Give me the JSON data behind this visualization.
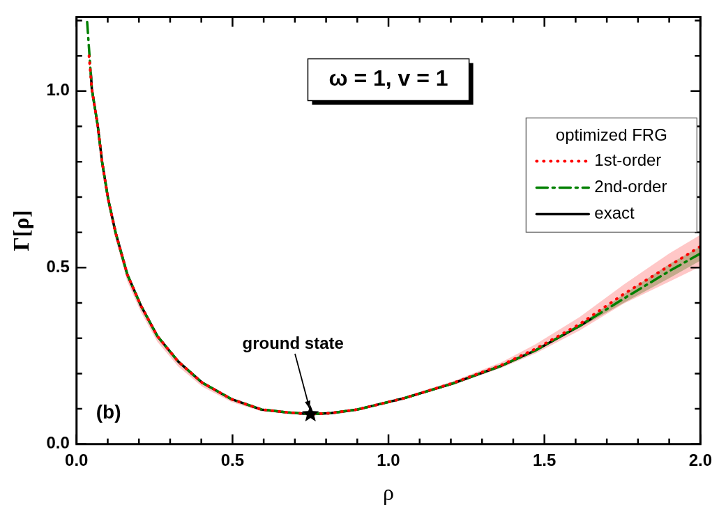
{
  "chart_data": {
    "type": "line",
    "xlabel": "ρ",
    "ylabel": "Γ[ρ]",
    "legend_title": "optimized FRG",
    "legend": "top right",
    "grid": false,
    "xlim": [
      0,
      2.0
    ],
    "ylim": [
      0,
      1.21
    ],
    "xticks": [
      {
        "value": 0,
        "label": "0.0"
      },
      {
        "value": 0.1,
        "label": null
      },
      {
        "value": 0.2,
        "label": null
      },
      {
        "value": 0.3,
        "label": null
      },
      {
        "value": 0.4,
        "label": null
      },
      {
        "value": 0.5,
        "label": "0.5"
      },
      {
        "value": 0.6,
        "label": null
      },
      {
        "value": 0.7,
        "label": null
      },
      {
        "value": 0.8,
        "label": null
      },
      {
        "value": 0.9,
        "label": null
      },
      {
        "value": 1.0,
        "label": "1.0"
      },
      {
        "value": 1.1,
        "label": null
      },
      {
        "value": 1.2,
        "label": null
      },
      {
        "value": 1.3,
        "label": null
      },
      {
        "value": 1.4,
        "label": null
      },
      {
        "value": 1.5,
        "label": "1.5"
      },
      {
        "value": 1.6,
        "label": null
      },
      {
        "value": 1.7,
        "label": null
      },
      {
        "value": 1.8,
        "label": null
      },
      {
        "value": 1.9,
        "label": null
      },
      {
        "value": 2.0,
        "label": "2.0"
      }
    ],
    "yticks": [
      {
        "value": 0,
        "label": "0.0"
      },
      {
        "value": 0.1,
        "label": null
      },
      {
        "value": 0.2,
        "label": null
      },
      {
        "value": 0.3,
        "label": null
      },
      {
        "value": 0.4,
        "label": null
      },
      {
        "value": 0.5,
        "label": "0.5"
      },
      {
        "value": 0.6,
        "label": null
      },
      {
        "value": 0.7,
        "label": null
      },
      {
        "value": 0.8,
        "label": null
      },
      {
        "value": 0.9,
        "label": null
      },
      {
        "value": 1.0,
        "label": "1.0"
      },
      {
        "value": 1.1,
        "label": null
      },
      {
        "value": 1.2,
        "label": null
      }
    ],
    "annotations": [
      "ω = 1, v = 1",
      "(b)",
      {
        "text": "ground state",
        "x": 0.75,
        "y": 0.085
      }
    ],
    "series": [
      {
        "name": "1st-order",
        "color": "#ff0000",
        "line_style": "dotted",
        "marker": "none",
        "x": [
          0.04,
          0.049,
          0.068,
          0.082,
          0.101,
          0.125,
          0.163,
          0.206,
          0.259,
          0.326,
          0.403,
          0.498,
          0.593,
          0.675,
          0.75,
          0.816,
          0.9,
          1.05,
          1.207,
          1.362,
          1.472,
          1.613,
          1.754,
          1.9,
          2.0
        ],
        "values": [
          1.1,
          1.006,
          0.902,
          0.799,
          0.696,
          0.6,
          0.48,
          0.393,
          0.306,
          0.234,
          0.174,
          0.127,
          0.098,
          0.09,
          0.085,
          0.088,
          0.098,
          0.13,
          0.173,
          0.224,
          0.27,
          0.34,
          0.425,
          0.505,
          0.56
        ],
        "lower": [
          1.08,
          0.99,
          0.885,
          0.78,
          0.675,
          0.58,
          0.46,
          0.375,
          0.29,
          0.22,
          0.163,
          0.119,
          0.093,
          0.087,
          0.083,
          0.086,
          0.096,
          0.127,
          0.168,
          0.216,
          0.257,
          0.322,
          0.398,
          0.46,
          0.503
        ],
        "upper": [
          1.12,
          1.012,
          0.908,
          0.805,
          0.702,
          0.606,
          0.486,
          0.399,
          0.311,
          0.238,
          0.178,
          0.13,
          0.1,
          0.092,
          0.087,
          0.09,
          0.1,
          0.134,
          0.178,
          0.232,
          0.283,
          0.36,
          0.452,
          0.54,
          0.593
        ]
      },
      {
        "name": "2nd-order",
        "color": "#008000",
        "line_style": "dashed",
        "marker": "none",
        "x": [
          0.034,
          0.049,
          0.068,
          0.082,
          0.101,
          0.125,
          0.163,
          0.206,
          0.259,
          0.326,
          0.403,
          0.498,
          0.593,
          0.675,
          0.75,
          0.816,
          0.9,
          1.05,
          1.207,
          1.362,
          1.472,
          1.55,
          1.613,
          1.754,
          1.9,
          2.0
        ],
        "values": [
          1.196,
          1.006,
          0.902,
          0.799,
          0.696,
          0.6,
          0.48,
          0.393,
          0.306,
          0.234,
          0.174,
          0.127,
          0.098,
          0.09,
          0.085,
          0.088,
          0.098,
          0.13,
          0.172,
          0.222,
          0.266,
          0.305,
          0.335,
          0.412,
          0.49,
          0.54
        ],
        "lower": [
          null,
          null,
          null,
          null,
          null,
          null,
          null,
          null,
          null,
          null,
          null,
          null,
          null,
          null,
          null,
          null,
          null,
          null,
          null,
          null,
          null,
          0.305,
          0.33,
          0.4,
          0.47,
          0.52
        ],
        "upper": [
          null,
          null,
          null,
          null,
          null,
          null,
          null,
          null,
          null,
          null,
          null,
          null,
          null,
          null,
          null,
          null,
          null,
          null,
          null,
          null,
          null,
          0.305,
          0.34,
          0.424,
          0.51,
          0.56
        ]
      },
      {
        "name": "exact",
        "color": "#000000",
        "line_style": "solid",
        "marker": "none",
        "x": [
          0.046,
          0.049,
          0.068,
          0.082,
          0.101,
          0.125,
          0.163,
          0.206,
          0.259,
          0.326,
          0.403,
          0.498,
          0.593,
          0.675,
          0.75,
          0.816,
          0.9,
          1.05,
          1.207,
          1.362,
          1.472,
          1.613,
          1.65
        ],
        "values": [
          1.05,
          1.006,
          0.902,
          0.799,
          0.696,
          0.6,
          0.48,
          0.393,
          0.306,
          0.234,
          0.174,
          0.127,
          0.098,
          0.09,
          0.085,
          0.088,
          0.098,
          0.13,
          0.172,
          0.222,
          0.266,
          0.335,
          0.355
        ]
      },
      {
        "type": "scatter",
        "color": "#000000",
        "marker": "star",
        "x": [
          0.75
        ],
        "values": [
          0.085
        ]
      }
    ]
  }
}
